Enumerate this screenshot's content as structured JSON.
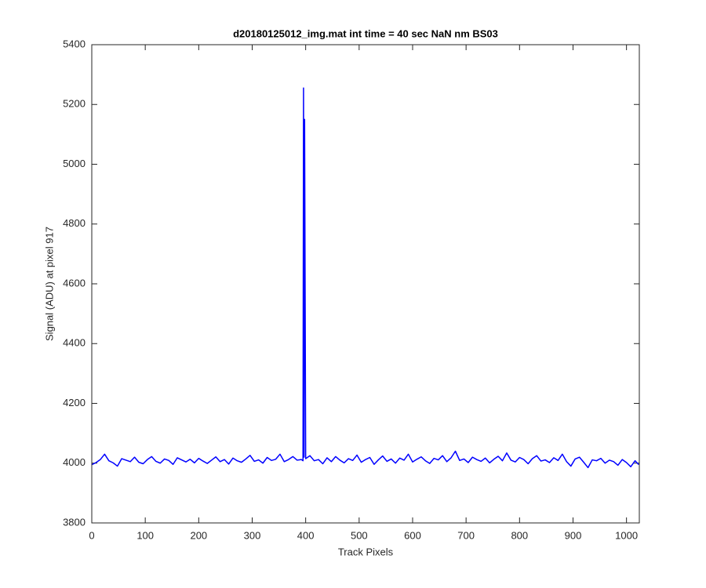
{
  "chart_data": {
    "type": "line",
    "title": "d20180125012_img.mat int time = 40 sec  NaN nm BS03",
    "xlabel": "Track Pixels",
    "ylabel": "Signal (ADU) at pixel 917",
    "xlim": [
      0,
      1024
    ],
    "ylim": [
      3800,
      5400
    ],
    "xticks": [
      0,
      100,
      200,
      300,
      400,
      500,
      600,
      700,
      800,
      900,
      1000
    ],
    "yticks": [
      3800,
      4000,
      4200,
      4400,
      4600,
      4800,
      5000,
      5200,
      5400
    ],
    "series": [
      {
        "color": "#0000ff",
        "x": [
          0,
          8,
          16,
          24,
          32,
          40,
          48,
          56,
          64,
          72,
          80,
          88,
          96,
          104,
          112,
          120,
          128,
          136,
          144,
          152,
          160,
          168,
          176,
          184,
          192,
          200,
          208,
          216,
          224,
          232,
          240,
          248,
          256,
          264,
          272,
          280,
          288,
          296,
          304,
          312,
          320,
          328,
          336,
          344,
          352,
          360,
          368,
          376,
          384,
          392,
          395,
          396,
          397,
          398,
          400,
          408,
          416,
          424,
          432,
          440,
          448,
          456,
          464,
          472,
          480,
          488,
          496,
          504,
          512,
          520,
          528,
          536,
          544,
          552,
          560,
          568,
          576,
          584,
          592,
          600,
          608,
          616,
          624,
          632,
          640,
          648,
          656,
          664,
          672,
          680,
          688,
          696,
          704,
          712,
          720,
          728,
          736,
          744,
          752,
          760,
          768,
          776,
          784,
          792,
          800,
          808,
          816,
          824,
          832,
          840,
          848,
          856,
          864,
          872,
          880,
          888,
          896,
          904,
          912,
          920,
          928,
          936,
          944,
          952,
          960,
          968,
          976,
          984,
          992,
          1000,
          1008,
          1016,
          1023
        ],
        "values": [
          3995,
          4002,
          4012,
          4030,
          4008,
          4001,
          3990,
          4015,
          4010,
          4005,
          4020,
          4003,
          3998,
          4012,
          4022,
          4006,
          4000,
          4014,
          4009,
          3996,
          4018,
          4011,
          4004,
          4013,
          4001,
          4016,
          4007,
          3999,
          4010,
          4021,
          4005,
          4012,
          3997,
          4017,
          4008,
          4003,
          4014,
          4026,
          4006,
          4011,
          4000,
          4019,
          4009,
          4013,
          4030,
          4005,
          4012,
          4022,
          4010,
          4012,
          4008,
          5255,
          4020,
          5150,
          4015,
          4025,
          4008,
          4012,
          3998,
          4018,
          4005,
          4022,
          4010,
          4001,
          4015,
          4009,
          4027,
          4003,
          4012,
          4019,
          3996,
          4011,
          4024,
          4006,
          4014,
          4000,
          4017,
          4010,
          4030,
          4004,
          4013,
          4021,
          4008,
          3999,
          4016,
          4011,
          4025,
          4005,
          4018,
          4040,
          4009,
          4014,
          4002,
          4020,
          4012,
          4006,
          4017,
          4001,
          4013,
          4023,
          4008,
          4034,
          4010,
          4004,
          4019,
          4012,
          3998,
          4015,
          4025,
          4007,
          4011,
          4002,
          4018,
          4009,
          4030,
          4005,
          3990,
          4014,
          4020,
          4003,
          3985,
          4011,
          4008,
          4016,
          4000,
          4010,
          4005,
          3993,
          4012,
          4002,
          3988,
          4008,
          3995
        ]
      }
    ]
  }
}
